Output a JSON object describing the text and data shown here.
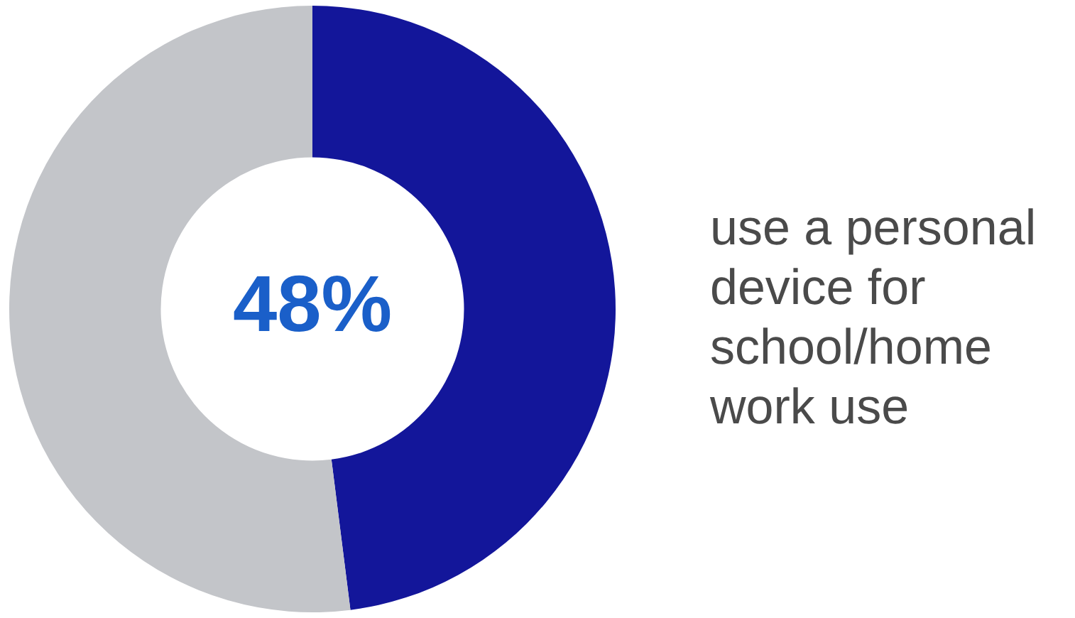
{
  "chart_data": {
    "type": "donut",
    "categories": [
      "use a personal device for school/home work use",
      null
    ],
    "values": [
      48,
      52
    ],
    "colors": [
      "#13169a",
      "#c3c5c9"
    ],
    "value_labels": [
      "48%",
      null
    ],
    "legend": false
  }
}
